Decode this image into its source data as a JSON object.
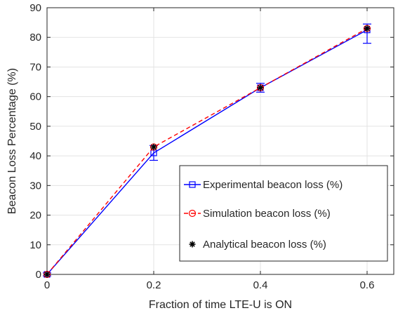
{
  "chart_data": {
    "type": "line",
    "xlabel": "Fraction of time LTE-U is ON",
    "ylabel": "Beacon Loss Percentage (%)",
    "xlim": [
      0,
      0.65
    ],
    "ylim": [
      0,
      90
    ],
    "xticks": [
      0,
      0.2,
      0.4,
      0.6
    ],
    "xtick_labels": [
      "0",
      "0.2",
      "0.4",
      "0.6"
    ],
    "yticks": [
      0,
      10,
      20,
      30,
      40,
      50,
      60,
      70,
      80,
      90
    ],
    "ytick_labels": [
      "0",
      "10",
      "20",
      "30",
      "40",
      "50",
      "60",
      "70",
      "80",
      "90"
    ],
    "grid": true,
    "legend_position": "lower-right",
    "series": [
      {
        "name": "Experimental beacon loss (%)",
        "color": "#0000ff",
        "line_style": "solid",
        "marker": "square",
        "x": [
          0,
          0.2,
          0.4,
          0.6
        ],
        "y": [
          0,
          41,
          63,
          82.5
        ],
        "error_low": [
          0.5,
          2.5,
          1.5,
          4.5
        ],
        "error_high": [
          0.5,
          2.5,
          1.5,
          2
        ]
      },
      {
        "name": "Simulation beacon loss (%)",
        "color": "#ff0000",
        "line_style": "dashed",
        "marker": "circle",
        "x": [
          0,
          0.2,
          0.4,
          0.6
        ],
        "y": [
          0,
          43,
          63,
          83
        ]
      },
      {
        "name": "Analytical beacon loss (%)",
        "color": "#000000",
        "line_style": "none",
        "marker": "asterisk",
        "x": [
          0,
          0.2,
          0.4,
          0.6
        ],
        "y": [
          0,
          43,
          63,
          83
        ]
      }
    ]
  }
}
